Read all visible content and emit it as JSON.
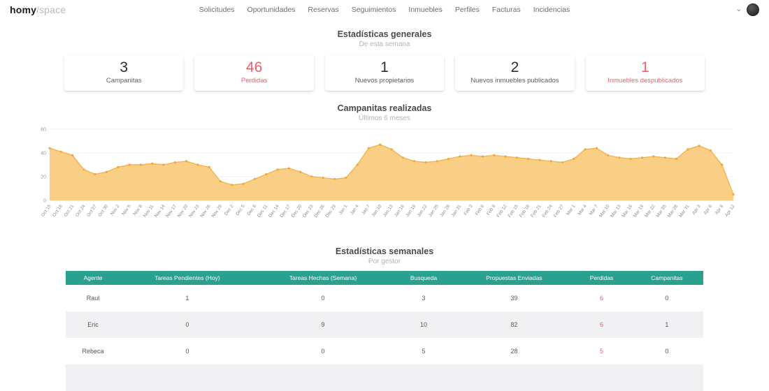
{
  "header": {
    "logo_primary": "homy",
    "logo_slash": "/",
    "logo_secondary": "space",
    "nav_items": [
      "Solicitudes",
      "Oportunidades",
      "Reservas",
      "Seguimientos",
      "Inmuebles",
      "Perfiles",
      "Facturas",
      "Incidencias"
    ]
  },
  "sections": {
    "general": {
      "title": "Estadísticas generales",
      "subtitle": "De esta semana"
    },
    "chart": {
      "title": "Campanitas realizadas",
      "subtitle": "Últimos 6 meses"
    },
    "weekly": {
      "title": "Estadísticas semanales",
      "subtitle": "Por gestor"
    }
  },
  "stat_cards": [
    {
      "value": "3",
      "label": "Campanitas"
    },
    {
      "value": "46",
      "label": "Perdidas"
    },
    {
      "value": "1",
      "label": "Nuevos propietarios"
    },
    {
      "value": "2",
      "label": "Nuevos inmuebles publicados"
    },
    {
      "value": "1",
      "label": "Inmuebles despublicados"
    }
  ],
  "chart_data": {
    "type": "area",
    "title": "Campanitas realizadas",
    "x": [
      "Oct 15",
      "Oct 18",
      "Oct 21",
      "Oct 24",
      "Oct 27",
      "Oct 30",
      "Nov 2",
      "Nov 5",
      "Nov 8",
      "Nov 11",
      "Nov 14",
      "Nov 17",
      "Nov 20",
      "Nov 23",
      "Nov 26",
      "Nov 29",
      "Dec 2",
      "Dec 5",
      "Dec 8",
      "Dec 11",
      "Dec 14",
      "Dec 17",
      "Dec 20",
      "Dec 23",
      "Dec 26",
      "Dec 29",
      "Jan 1",
      "Jan 4",
      "Jan 7",
      "Jan 10",
      "Jan 13",
      "Jan 16",
      "Jan 19",
      "Jan 22",
      "Jan 25",
      "Jan 28",
      "Jan 31",
      "Feb 3",
      "Feb 6",
      "Feb 9",
      "Feb 12",
      "Feb 15",
      "Feb 18",
      "Feb 21",
      "Feb 24",
      "Feb 27",
      "Mar 1",
      "Mar 4",
      "Mar 7",
      "Mar 10",
      "Mar 13",
      "Mar 16",
      "Mar 19",
      "Mar 22",
      "Mar 25",
      "Mar 28",
      "Mar 31",
      "Apr 3",
      "Apr 6",
      "Apr 9",
      "Apr 12"
    ],
    "values": [
      44,
      41,
      38,
      26,
      22,
      24,
      28,
      30,
      30,
      31,
      30,
      32,
      33,
      30,
      28,
      16,
      13,
      14,
      18,
      22,
      26,
      27,
      24,
      20,
      19,
      18,
      19,
      30,
      44,
      47,
      43,
      36,
      33,
      32,
      33,
      35,
      37,
      38,
      37,
      38,
      37,
      36,
      35,
      34,
      33,
      32,
      35,
      43,
      44,
      38,
      36,
      35,
      36,
      37,
      36,
      35,
      43,
      46,
      42,
      30,
      5
    ],
    "ylim": [
      0,
      60
    ],
    "yticks": [
      0,
      20,
      40,
      60
    ],
    "fill_color": "#f7c873",
    "line_color": "#f3b452",
    "point_color": "#f0a73e",
    "grid": true,
    "legend": "none"
  },
  "table": {
    "headers": [
      "Agente",
      "Tareas Pendientes (Hoy)",
      "Tareas Hechas (Semana)",
      "Busqueda",
      "Propuestas Enviadas",
      "Perdidas",
      "Campanitas"
    ],
    "rows": [
      [
        "Raul",
        "1",
        "0",
        "3",
        "39",
        "6",
        "0"
      ],
      [
        "Eric",
        "0",
        "9",
        "10",
        "82",
        "6",
        "1"
      ],
      [
        "Rebeca",
        "0",
        "0",
        "5",
        "28",
        "5",
        "0"
      ]
    ]
  },
  "colors": {
    "accent_red": "#ee5f6d",
    "table_header_teal": "#2aa08f",
    "chart_fill": "#f7c873"
  }
}
